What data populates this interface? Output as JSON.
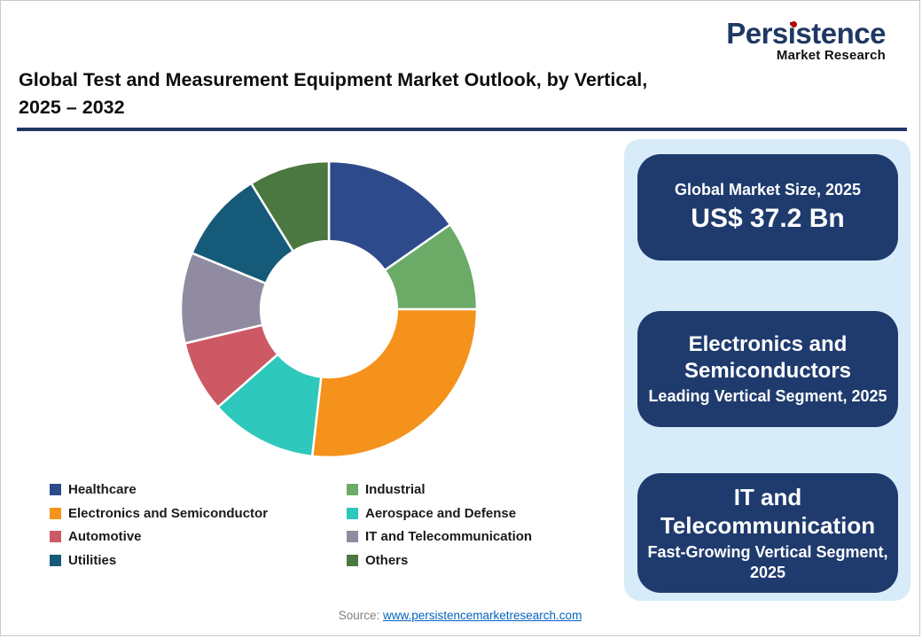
{
  "logo": {
    "brand": "Persistence",
    "sub": "Market Research",
    "brand_color": "#1F3864",
    "accent_color": "#C00000"
  },
  "header": {
    "title_line1": "Global Test and Measurement Equipment Market Outlook, by Vertical,",
    "title_line2": "2025 – 2032",
    "rule_color": "#1F3864"
  },
  "chart_data": {
    "type": "pie",
    "subtype": "donut",
    "title": "Global Test and Measurement Equipment Market Outlook, by Vertical, 2025 – 2032",
    "unit": "percent share, estimated from arc angles",
    "categories": [
      "Healthcare",
      "Industrial",
      "Electronics and Semiconductor",
      "Aerospace and Defense",
      "Automotive",
      "IT and Telecommunication",
      "Utilities",
      "Others"
    ],
    "values": [
      15.3,
      9.7,
      26.8,
      11.7,
      7.8,
      9.9,
      10.0,
      8.8
    ],
    "colors": [
      "#2D4A8A",
      "#6BAA67",
      "#F5921B",
      "#2EC8BC",
      "#CD5965",
      "#908BA0",
      "#155B79",
      "#4A7840"
    ],
    "start_angle_deg": 0,
    "clockwise": true,
    "inner_radius_ratio": 0.46,
    "separator_color": "#FFFFFF",
    "legend_position": "bottom",
    "legend_columns": 2
  },
  "side_panel": {
    "background": "#D7ECF8",
    "box_color": "#1F3B6E",
    "boxes": [
      {
        "line1": "Global Market Size, 2025",
        "line2": "US$ 37.2 Bn"
      },
      {
        "line1": "Electronics and Semiconductors",
        "line2": "Leading Vertical Segment, 2025"
      },
      {
        "line1": "IT and Telecommunication",
        "line2": "Fast-Growing Vertical Segment, 2025"
      }
    ]
  },
  "footer": {
    "source_label": "Source:",
    "source_link": "www.persistencemarketresearch.com",
    "link_color": "#0563C1"
  }
}
